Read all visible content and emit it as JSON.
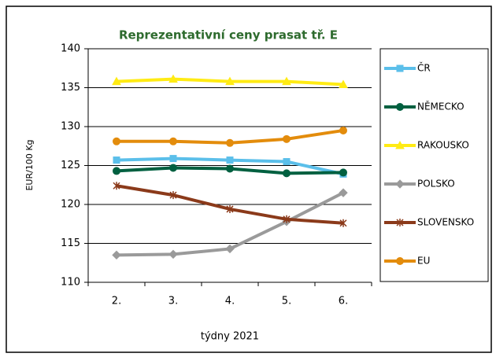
{
  "chart_data": {
    "type": "line",
    "title": "Reprezentativní  ceny prasat tř. E",
    "x_label": "týdny 2021",
    "y_label": "EUR/100 Kg",
    "categories": [
      "2.",
      "3.",
      "4.",
      "5.",
      "6."
    ],
    "ylim": [
      110,
      140
    ],
    "yticks": [
      110,
      115,
      120,
      125,
      130,
      135,
      140
    ],
    "grid": true,
    "legend": "right",
    "series": [
      {
        "name": "ČR",
        "color": "#5bbfea",
        "marker": "square",
        "values": [
          125.7,
          125.9,
          125.7,
          125.5,
          123.9
        ]
      },
      {
        "name": "NĚMECKO",
        "color": "#006040",
        "marker": "circle",
        "values": [
          124.3,
          124.7,
          124.6,
          124.0,
          124.1
        ]
      },
      {
        "name": "RAKOUSKO",
        "color": "#ffeb14",
        "marker": "triangle",
        "values": [
          135.8,
          136.1,
          135.8,
          135.8,
          135.4
        ]
      },
      {
        "name": "POLSKO",
        "color": "#9a9a9a",
        "marker": "diamond",
        "values": [
          113.5,
          113.6,
          114.3,
          117.8,
          121.5
        ]
      },
      {
        "name": "SLOVENSKO",
        "color": "#8b3a1a",
        "marker": "star",
        "values": [
          122.4,
          121.2,
          119.4,
          118.1,
          117.6
        ]
      },
      {
        "name": "EU",
        "color": "#e38c0c",
        "marker": "circle",
        "values": [
          128.1,
          128.1,
          127.9,
          128.4,
          129.5
        ]
      }
    ]
  }
}
